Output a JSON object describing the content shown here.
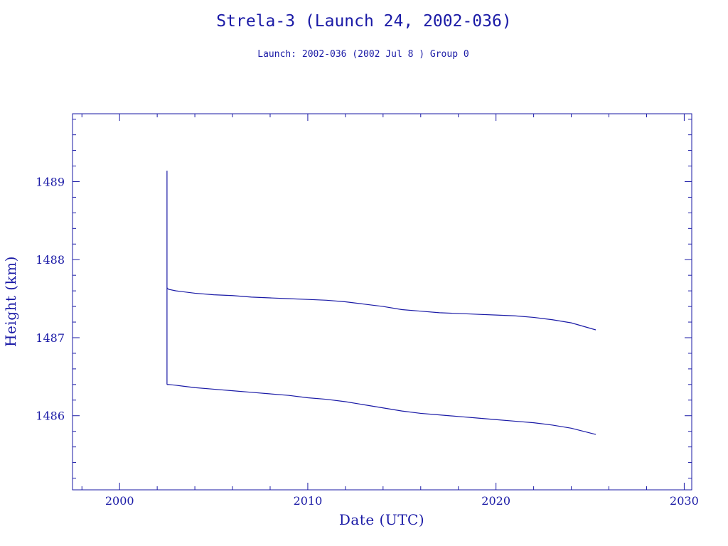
{
  "colors": {
    "ink": "#1a1aa6",
    "background": "#ffffff"
  },
  "chart_data": {
    "type": "line",
    "title": "Strela-3 (Launch 24, 2002-036)",
    "subtitle": "Launch: 2002-036  (2002 Jul  8 )  Group 0",
    "xlabel": "Date (UTC)",
    "ylabel": "Height (km)",
    "xlim": [
      1997.5,
      2030.4
    ],
    "ylim": [
      1485.05,
      1489.87
    ],
    "x_major_ticks": [
      2000,
      2010,
      2020,
      2030
    ],
    "x_minor_step": 2,
    "y_major_ticks": [
      1486,
      1487,
      1488,
      1489
    ],
    "y_minor_step": 0.2,
    "grid": false,
    "launch_spike": {
      "x": 2002.52,
      "y_low": 1486.4,
      "y_high": 1489.14
    },
    "series": [
      {
        "x": [
          2002.52,
          2002.6,
          2003,
          2004,
          2005,
          2006,
          2007,
          2008,
          2009,
          2010,
          2011,
          2012,
          2013,
          2014,
          2015,
          2016,
          2017,
          2018,
          2019,
          2020,
          2021,
          2022,
          2023,
          2024,
          2025.3
        ],
        "y": [
          1487.64,
          1487.62,
          1487.6,
          1487.57,
          1487.55,
          1487.54,
          1487.52,
          1487.51,
          1487.5,
          1487.49,
          1487.48,
          1487.46,
          1487.43,
          1487.4,
          1487.36,
          1487.34,
          1487.32,
          1487.31,
          1487.3,
          1487.29,
          1487.28,
          1487.26,
          1487.23,
          1487.19,
          1487.1
        ]
      },
      {
        "x": [
          2002.52,
          2002.6,
          2003,
          2004,
          2005,
          2006,
          2007,
          2008,
          2009,
          2010,
          2011,
          2012,
          2013,
          2014,
          2015,
          2016,
          2017,
          2018,
          2019,
          2020,
          2021,
          2022,
          2023,
          2024,
          2025.3
        ],
        "y": [
          1486.4,
          1486.4,
          1486.39,
          1486.36,
          1486.34,
          1486.32,
          1486.3,
          1486.28,
          1486.26,
          1486.23,
          1486.21,
          1486.18,
          1486.14,
          1486.1,
          1486.06,
          1486.03,
          1486.01,
          1485.99,
          1485.97,
          1485.95,
          1485.93,
          1485.91,
          1485.88,
          1485.84,
          1485.76
        ]
      }
    ]
  }
}
